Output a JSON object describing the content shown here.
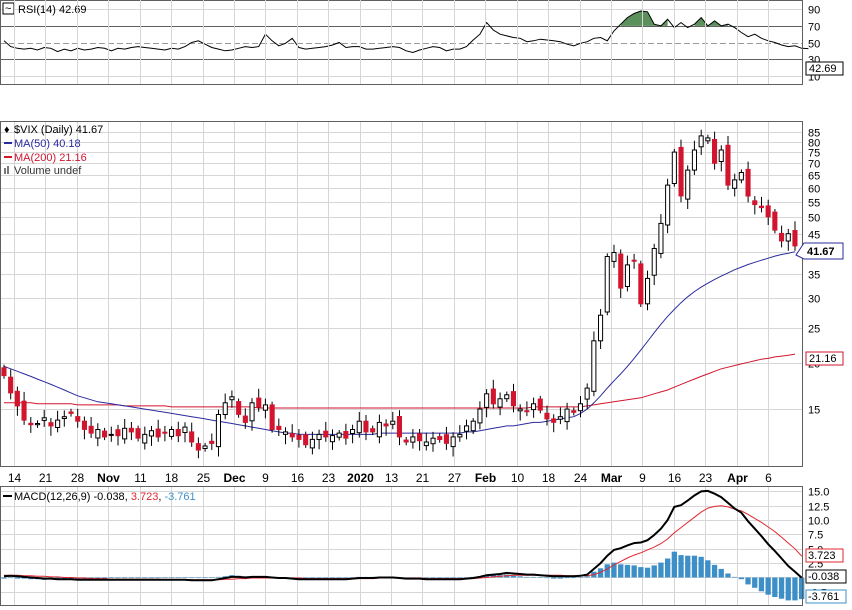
{
  "chart_data": [
    {
      "type": "line",
      "panel": "RSI",
      "legend": {
        "label": "RSI(14)",
        "value": "42.69"
      },
      "ylim": [
        0,
        100
      ],
      "yticks": [
        "90",
        "70",
        "50",
        "30",
        "10"
      ],
      "reference_lines": [
        70,
        30
      ],
      "overbought_fill_color": "#5b8f5b",
      "series": [
        {
          "name": "RSI(14)",
          "color": "#000000",
          "values": [
            52,
            45,
            43,
            42,
            43,
            41,
            44,
            43,
            39,
            42,
            40,
            43,
            41,
            42,
            44,
            43,
            40,
            43,
            42,
            44,
            45,
            44,
            43,
            42,
            41,
            43,
            42,
            45,
            50,
            52,
            48,
            44,
            42,
            40,
            41,
            43,
            45,
            44,
            45,
            60,
            52,
            46,
            49,
            55,
            44,
            42,
            43,
            44,
            45,
            47,
            50,
            44,
            45,
            45,
            42,
            42,
            43,
            44,
            45,
            44,
            40,
            38,
            41,
            43,
            45,
            44,
            40,
            42,
            42,
            45,
            53,
            60,
            74,
            65,
            60,
            58,
            56,
            55,
            51,
            52,
            54,
            53,
            52,
            51,
            48,
            46,
            49,
            51,
            55,
            56,
            52,
            64,
            72,
            80,
            85,
            88,
            87,
            72,
            70,
            78,
            68,
            74,
            68,
            72,
            80,
            70,
            76,
            70,
            72,
            68,
            62,
            57,
            60,
            55,
            52,
            50,
            47,
            45,
            46,
            43,
            42.69
          ]
        }
      ]
    },
    {
      "type": "candlestick",
      "panel": "price",
      "title": "$VIX (Daily) 41.67",
      "legend": [
        {
          "label": "MA(50) 40.18",
          "color": "#2b2b9e"
        },
        {
          "label": "MA(200) 21.16",
          "color": "#d2152e"
        },
        {
          "label": "Volume undef",
          "color": "#7a7a7a"
        }
      ],
      "yticks": [
        "85",
        "80",
        "75",
        "70",
        "65",
        "60",
        "55",
        "50",
        "45",
        "40",
        "35",
        "30",
        "25",
        "20",
        "15"
      ],
      "scale": "log",
      "ylim": [
        10.5,
        90
      ],
      "last_value_labels": [
        "41.67",
        "21.16"
      ],
      "x_ticks": [
        "14",
        "21",
        "28",
        "Nov",
        "11",
        "18",
        "25",
        "Dec",
        "9",
        "16",
        "23",
        "2020",
        "13",
        "21",
        "27",
        "Feb",
        "10",
        "18",
        "24",
        "Mar",
        "9",
        "16",
        "23",
        "Apr",
        "6"
      ],
      "x_ticks_bold": [
        "Nov",
        "Dec",
        "2020",
        "Feb",
        "Mar",
        "Apr"
      ],
      "up_color": "#ffffff",
      "down_color": "#d2152e",
      "close": [
        18.5,
        16.6,
        15.3,
        14.0,
        13.6,
        13.7,
        14.2,
        13.5,
        14.0,
        14.3,
        14.6,
        13.9,
        13.2,
        12.9,
        13.2,
        12.6,
        12.8,
        12.7,
        13.3,
        13.0,
        12.5,
        12.8,
        13.1,
        12.6,
        12.9,
        13.2,
        12.7,
        13.4,
        12.2,
        11.6,
        11.9,
        12.1,
        14.5,
        15.6,
        16.2,
        14.5,
        13.8,
        15.6,
        15.2,
        15.4,
        13.2,
        13.2,
        13.0,
        12.6,
        12.4,
        12.0,
        12.4,
        12.8,
        12.6,
        12.7,
        12.9,
        12.5,
        13.2,
        13.9,
        13.0,
        13.0,
        13.8,
        13.5,
        13.9,
        12.6,
        12.2,
        12.6,
        12.3,
        12.2,
        12.5,
        12.4,
        12.1,
        12.6,
        12.8,
        13.5,
        13.9,
        15.0,
        16.5,
        15.5,
        16.0,
        16.4,
        15.3,
        15.0,
        14.8,
        15.5,
        14.9,
        14.1,
        13.8,
        14.3,
        15.0,
        14.7,
        15.5,
        17.1,
        23,
        27,
        39,
        40,
        32,
        37,
        38,
        29,
        34,
        41,
        48,
        61,
        75,
        57,
        67,
        76,
        83,
        82,
        70,
        76,
        61,
        63,
        66,
        57,
        54,
        53,
        50,
        46,
        43,
        45,
        41.67
      ],
      "ma50": [
        19.6,
        19.3,
        19.0,
        18.7,
        18.4,
        18.1,
        17.8,
        17.5,
        17.2,
        16.9,
        16.6,
        16.3,
        16.1,
        15.9,
        15.7,
        15.6,
        15.5,
        15.4,
        15.3,
        15.2,
        15.1,
        15.0,
        14.9,
        14.8,
        14.7,
        14.6,
        14.5,
        14.4,
        14.3,
        14.2,
        14.1,
        14.0,
        13.9,
        13.8,
        13.7,
        13.6,
        13.5,
        13.4,
        13.3,
        13.2,
        13.1,
        13.0,
        12.9,
        12.9,
        12.8,
        12.8,
        12.8,
        12.8,
        12.8,
        12.8,
        12.8,
        12.8,
        12.8,
        12.8,
        12.8,
        12.8,
        12.9,
        12.9,
        12.9,
        12.9,
        12.9,
        12.9,
        12.9,
        12.9,
        12.9,
        12.9,
        12.9,
        12.9,
        12.9,
        13.0,
        13.0,
        13.1,
        13.2,
        13.3,
        13.4,
        13.5,
        13.5,
        13.6,
        13.7,
        13.8,
        13.8,
        13.9,
        14.0,
        14.1,
        14.2,
        14.3,
        14.6,
        15.0,
        15.6,
        16.3,
        17.1,
        17.9,
        18.7,
        19.6,
        20.6,
        21.7,
        22.9,
        24.2,
        25.5,
        26.8,
        28.0,
        29.2,
        30.3,
        31.3,
        32.2,
        33.0,
        33.8,
        34.5,
        35.2,
        35.9,
        36.5,
        37.1,
        37.6,
        38.1,
        38.6,
        39.1,
        39.5,
        39.8,
        40.18
      ],
      "ma200": [
        15.6,
        15.6,
        15.6,
        15.6,
        15.6,
        15.5,
        15.5,
        15.5,
        15.5,
        15.5,
        15.5,
        15.4,
        15.4,
        15.4,
        15.4,
        15.4,
        15.4,
        15.4,
        15.3,
        15.3,
        15.3,
        15.3,
        15.3,
        15.3,
        15.3,
        15.2,
        15.2,
        15.2,
        15.2,
        15.2,
        15.2,
        15.2,
        15.2,
        15.2,
        15.2,
        15.2,
        15.2,
        15.2,
        15.1,
        15.1,
        15.1,
        15.1,
        15.1,
        15.1,
        15.1,
        15.1,
        15.1,
        15.1,
        15.1,
        15.1,
        15.1,
        15.1,
        15.1,
        15.1,
        15.1,
        15.1,
        15.1,
        15.1,
        15.1,
        15.1,
        15.1,
        15.1,
        15.1,
        15.1,
        15.1,
        15.1,
        15.1,
        15.1,
        15.1,
        15.1,
        15.1,
        15.1,
        15.1,
        15.1,
        15.1,
        15.1,
        15.1,
        15.1,
        15.1,
        15.2,
        15.2,
        15.2,
        15.2,
        15.2,
        15.2,
        15.2,
        15.2,
        15.3,
        15.4,
        15.5,
        15.6,
        15.7,
        15.8,
        15.9,
        16.0,
        16.1,
        16.3,
        16.5,
        16.7,
        16.9,
        17.2,
        17.5,
        17.8,
        18.1,
        18.4,
        18.7,
        19.0,
        19.3,
        19.5,
        19.7,
        19.9,
        20.1,
        20.3,
        20.5,
        20.6,
        20.8,
        20.9,
        21.0,
        21.16
      ]
    },
    {
      "type": "bar+line",
      "panel": "MACD",
      "legend": {
        "label": "MACD(12,26,9)",
        "macd": "-0.038",
        "signal": "3.723",
        "histogram": "-3.761"
      },
      "ylim": [
        -4.8,
        15.6
      ],
      "yticks": [
        "15.0",
        "12.5",
        "10.0",
        "7.5",
        "5.0",
        "2.5",
        "0.0",
        "-2.5"
      ],
      "last_value_labels": [
        "3.723",
        "-0.038",
        "-3.761"
      ],
      "colors": {
        "macd": "#000000",
        "signal": "#e0272f",
        "histogram": "#3d8fc7"
      },
      "macd": [
        0.2,
        0.3,
        0.2,
        0.1,
        0.0,
        -0.1,
        -0.2,
        -0.2,
        -0.3,
        -0.3,
        -0.3,
        -0.4,
        -0.4,
        -0.4,
        -0.4,
        -0.4,
        -0.4,
        -0.4,
        -0.4,
        -0.4,
        -0.4,
        -0.4,
        -0.4,
        -0.4,
        -0.4,
        -0.4,
        -0.4,
        -0.4,
        -0.5,
        -0.5,
        -0.5,
        -0.5,
        -0.3,
        -0.1,
        0.1,
        0.1,
        0.0,
        0.1,
        0.1,
        0.1,
        0.0,
        -0.1,
        -0.1,
        -0.2,
        -0.3,
        -0.3,
        -0.3,
        -0.3,
        -0.3,
        -0.3,
        -0.3,
        -0.3,
        -0.2,
        -0.1,
        -0.1,
        -0.1,
        0.0,
        0.0,
        0.0,
        -0.1,
        -0.2,
        -0.2,
        -0.2,
        -0.3,
        -0.3,
        -0.3,
        -0.3,
        -0.3,
        -0.3,
        -0.2,
        -0.1,
        0.1,
        0.4,
        0.5,
        0.6,
        0.8,
        0.7,
        0.6,
        0.5,
        0.5,
        0.4,
        0.3,
        0.2,
        0.2,
        0.2,
        0.2,
        0.3,
        0.5,
        1.5,
        2.5,
        3.8,
        4.8,
        5.1,
        5.6,
        6.0,
        6.1,
        6.5,
        7.4,
        8.5,
        10.0,
        12.3,
        12.6,
        13.4,
        14.3,
        15.0,
        15.1,
        14.6,
        14.0,
        13.0,
        12.0,
        11.3,
        9.8,
        8.5,
        7.2,
        5.8,
        4.6,
        3.3,
        2.0,
        1.0,
        -0.038
      ],
      "signal": [
        0.4,
        0.4,
        0.4,
        0.3,
        0.3,
        0.2,
        0.2,
        0.1,
        0.1,
        0.0,
        0.0,
        -0.1,
        -0.1,
        -0.2,
        -0.2,
        -0.2,
        -0.3,
        -0.3,
        -0.3,
        -0.3,
        -0.3,
        -0.3,
        -0.3,
        -0.3,
        -0.4,
        -0.4,
        -0.4,
        -0.4,
        -0.4,
        -0.4,
        -0.4,
        -0.4,
        -0.4,
        -0.3,
        -0.3,
        -0.2,
        -0.2,
        -0.1,
        -0.1,
        -0.1,
        -0.1,
        -0.1,
        -0.1,
        -0.1,
        -0.1,
        -0.2,
        -0.2,
        -0.2,
        -0.2,
        -0.2,
        -0.2,
        -0.2,
        -0.2,
        -0.2,
        -0.2,
        -0.2,
        -0.1,
        -0.1,
        -0.1,
        -0.1,
        -0.1,
        -0.1,
        -0.1,
        -0.2,
        -0.2,
        -0.2,
        -0.2,
        -0.2,
        -0.2,
        -0.2,
        -0.2,
        -0.1,
        0.0,
        0.1,
        0.2,
        0.3,
        0.4,
        0.4,
        0.4,
        0.4,
        0.4,
        0.4,
        0.4,
        0.4,
        0.3,
        0.3,
        0.3,
        0.3,
        0.5,
        0.9,
        1.5,
        2.2,
        2.8,
        3.4,
        3.9,
        4.3,
        4.8,
        5.3,
        5.9,
        6.7,
        7.8,
        8.7,
        9.6,
        10.5,
        11.4,
        12.1,
        12.4,
        12.5,
        12.3,
        11.9,
        11.6,
        11.0,
        10.3,
        9.6,
        8.8,
        8.0,
        7.0,
        6.0,
        5.0,
        3.723
      ]
    }
  ]
}
